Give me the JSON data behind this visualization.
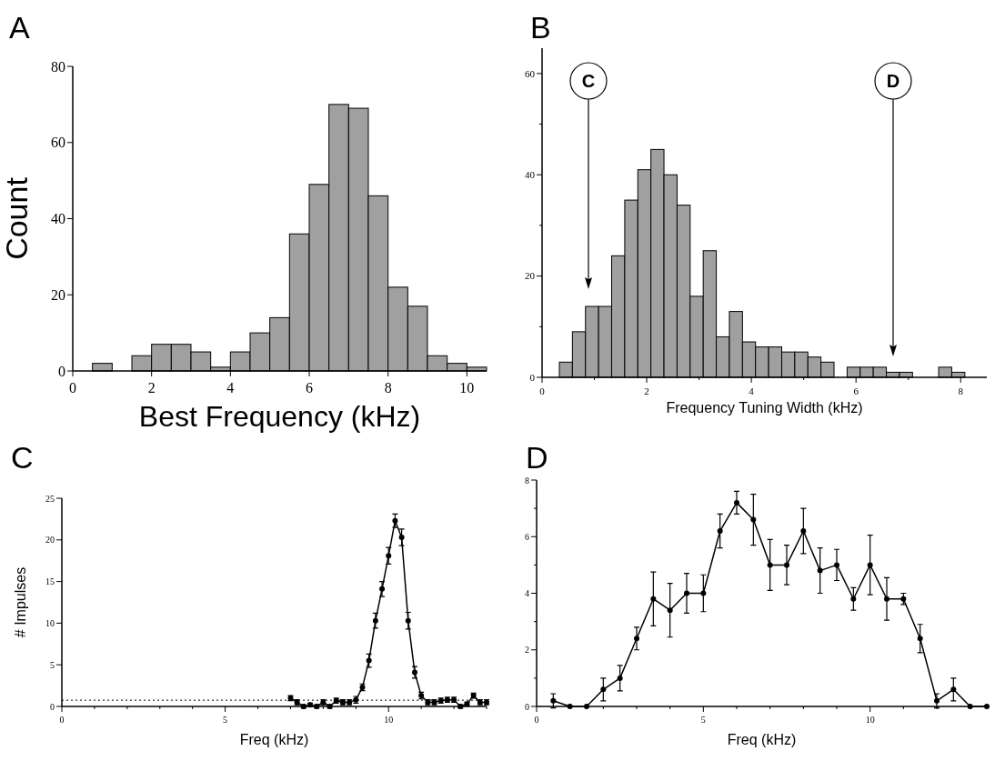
{
  "chart_data": [
    {
      "type": "histogram",
      "title": "A",
      "xlabel": "Best Frequency (kHz)",
      "ylabel": "Count",
      "color": "#a0a0a0",
      "bins": [
        0.5,
        1,
        1.5,
        2,
        2.5,
        3,
        3.5,
        4,
        4.5,
        5,
        5.5,
        6,
        6.5,
        7,
        7.5,
        8,
        8.5,
        9,
        9.5,
        10,
        10.5
      ],
      "values": [
        2,
        0,
        4,
        7,
        7,
        5,
        1,
        5,
        10,
        14,
        36,
        49,
        70,
        69,
        46,
        22,
        17,
        4,
        2,
        1
      ],
      "xlim": [
        0,
        10.5
      ],
      "xticks": [
        0,
        2,
        4,
        6,
        8,
        10
      ],
      "ylim": [
        0,
        80
      ],
      "yticks": [
        0,
        20,
        40,
        60,
        80
      ]
    },
    {
      "type": "histogram",
      "title": "B",
      "xlabel": "Frequency Tuning Width (kHz)",
      "color": "#a0a0a0",
      "bins": [
        0.33,
        0.58,
        0.83,
        1.08,
        1.33,
        1.58,
        1.83,
        2.08,
        2.33,
        2.58,
        2.83,
        3.08,
        3.33,
        3.58,
        3.83,
        4.08,
        4.33,
        4.58,
        4.83,
        5.08,
        5.33,
        5.58,
        5.83,
        6.08,
        6.33,
        6.58,
        6.83,
        7.08,
        7.33,
        7.58,
        7.83,
        8.08
      ],
      "values": [
        3,
        9,
        14,
        14,
        24,
        35,
        41,
        45,
        40,
        34,
        16,
        25,
        8,
        13,
        7,
        6,
        6,
        5,
        5,
        4,
        3,
        0,
        2,
        2,
        2,
        1,
        1,
        0,
        0,
        2,
        1
      ],
      "xlim": [
        0,
        8.5
      ],
      "xticks": [
        0,
        {
          "value": 1,
          "label": null
        },
        2,
        {
          "value": 3,
          "label": null
        },
        4,
        {
          "value": 5,
          "label": null
        },
        6,
        {
          "value": 7,
          "label": null
        },
        8
      ],
      "ylim": [
        0,
        65
      ],
      "yticks": [
        0,
        {
          "value": 10,
          "label": null
        },
        20,
        {
          "value": 30,
          "label": null
        },
        40,
        {
          "value": 50,
          "label": null
        },
        60
      ],
      "annotations": [
        "C",
        "D"
      ]
    },
    {
      "type": "line",
      "title": "C",
      "xlabel": "Freq (kHz)",
      "ylabel": "# Impulses",
      "color": "#000000",
      "marker": "circle",
      "line_style": "solid",
      "x": [
        7.0,
        7.2,
        7.4,
        7.6,
        7.8,
        8.0,
        8.2,
        8.4,
        8.6,
        8.8,
        9.0,
        9.2,
        9.4,
        9.6,
        9.8,
        10.0,
        10.2,
        10.4,
        10.6,
        10.8,
        11.0,
        11.2,
        11.4,
        11.6,
        11.8,
        12.0,
        12.2,
        12.4,
        12.6,
        12.8,
        13.0
      ],
      "values": [
        1.0,
        0.5,
        0.0,
        0.2,
        0.0,
        0.5,
        0.0,
        0.7,
        0.5,
        0.5,
        0.8,
        2.3,
        5.5,
        10.3,
        14.1,
        18.1,
        22.3,
        20.3,
        10.3,
        4.1,
        1.3,
        0.5,
        0.5,
        0.7,
        0.8,
        0.8,
        0.0,
        0.3,
        1.3,
        0.5,
        0.5
      ],
      "errors": [
        0.3,
        0.3,
        0.2,
        0.2,
        0.2,
        0.3,
        0.2,
        0.3,
        0.3,
        0.3,
        0.4,
        0.4,
        0.8,
        0.9,
        0.9,
        1.0,
        0.8,
        1.0,
        1.0,
        0.7,
        0.4,
        0.3,
        0.3,
        0.3,
        0.3,
        0.3,
        0.2,
        0.2,
        0.3,
        0.3,
        0.3
      ],
      "ref_lines": [
        {
          "axis": "y",
          "value": 0.75,
          "line_style": "dotted"
        }
      ],
      "xlim": [
        0,
        13
      ],
      "xticks": [
        0,
        {
          "value": 1,
          "label": null
        },
        {
          "value": 2,
          "label": null
        },
        {
          "value": 3,
          "label": null
        },
        {
          "value": 4,
          "label": null
        },
        5,
        {
          "value": 6,
          "label": null
        },
        {
          "value": 7,
          "label": null
        },
        {
          "value": 8,
          "label": null
        },
        {
          "value": 9,
          "label": null
        },
        10,
        {
          "value": 11,
          "label": null
        },
        {
          "value": 12,
          "label": null
        },
        {
          "value": 13,
          "label": null
        }
      ],
      "ylim": [
        0,
        25
      ],
      "yticks": [
        0,
        5,
        10,
        15,
        20,
        25
      ]
    },
    {
      "type": "line",
      "title": "D",
      "xlabel": "Freq (kHz)",
      "color": "#000000",
      "marker": "circle",
      "line_style": "solid",
      "x": [
        0.5,
        1,
        1.5,
        2,
        2.5,
        3,
        3.5,
        4,
        4.5,
        5,
        5.5,
        6,
        6.5,
        7,
        7.5,
        8,
        8.5,
        9,
        9.5,
        10,
        10.5,
        11,
        11.5,
        12,
        12.5,
        13,
        13.5
      ],
      "values": [
        0.2,
        0,
        0,
        0.6,
        1.0,
        2.4,
        3.8,
        3.4,
        4.0,
        4.0,
        6.2,
        7.2,
        6.6,
        5.0,
        5.0,
        6.2,
        4.8,
        5.0,
        3.8,
        5.0,
        3.8,
        3.8,
        2.4,
        0.2,
        0.6,
        0,
        0
      ],
      "errors": [
        0.25,
        null,
        null,
        0.4,
        0.45,
        0.4,
        0.95,
        0.95,
        0.7,
        0.65,
        0.6,
        0.4,
        0.9,
        0.9,
        0.7,
        0.8,
        0.8,
        0.55,
        0.4,
        1.05,
        0.75,
        0.2,
        0.5,
        0.25,
        0.4,
        null,
        null
      ],
      "xlim": [
        0,
        13.5
      ],
      "xticks": [
        0,
        {
          "value": 1,
          "label": null
        },
        {
          "value": 2,
          "label": null
        },
        {
          "value": 3,
          "label": null
        },
        {
          "value": 4,
          "label": null
        },
        5,
        {
          "value": 6,
          "label": null
        },
        {
          "value": 7,
          "label": null
        },
        {
          "value": 8,
          "label": null
        },
        {
          "value": 9,
          "label": null
        },
        10,
        {
          "value": 11,
          "label": null
        },
        {
          "value": 12,
          "label": null
        },
        {
          "value": 13,
          "label": null
        }
      ],
      "ylim": [
        0,
        8
      ],
      "yticks": [
        0,
        {
          "value": 1,
          "label": null
        },
        2,
        {
          "value": 3,
          "label": null
        },
        4,
        {
          "value": 5,
          "label": null
        },
        6,
        {
          "value": 7,
          "label": null
        },
        8
      ]
    }
  ]
}
